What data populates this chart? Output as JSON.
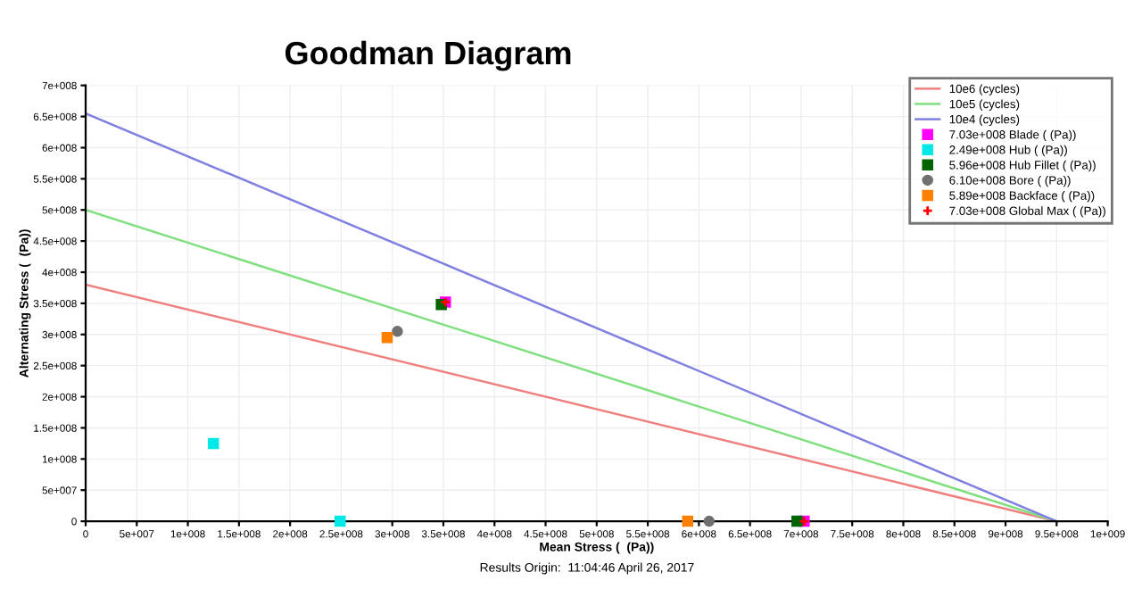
{
  "chart_data": {
    "type": "scatter",
    "title": "Goodman Diagram",
    "xlabel": "Mean Stress (  (Pa))",
    "ylabel": "Alternating Stress (  (Pa))",
    "series": [
      {
        "name": "10e6 (cycles)",
        "type": "line",
        "color": "#f08080",
        "marker": "none",
        "x": [
          0,
          950000000
        ],
        "values": [
          380000000,
          0
        ]
      },
      {
        "name": "10e5 (cycles)",
        "type": "line",
        "color": "#80e080",
        "marker": "none",
        "x": [
          0,
          950000000
        ],
        "values": [
          500000000,
          0
        ]
      },
      {
        "name": "10e4 (cycles)",
        "type": "line",
        "color": "#8080e0",
        "marker": "none",
        "x": [
          0,
          950000000
        ],
        "values": [
          655000000,
          0
        ]
      },
      {
        "name": "7.03e+008 Blade ( (Pa))",
        "color": "#ff00ff",
        "marker": "square",
        "x": [
          352000000,
          703000000
        ],
        "values": [
          352000000,
          0
        ]
      },
      {
        "name": "2.49e+008 Hub ( (Pa))",
        "color": "#00e8e8",
        "marker": "square",
        "x": [
          125000000,
          249000000
        ],
        "values": [
          125000000,
          0
        ]
      },
      {
        "name": "5.96e+008 Hub Fillet ( (Pa))",
        "color": "#006400",
        "marker": "square",
        "x": [
          348000000,
          696000000
        ],
        "values": [
          348000000,
          0
        ]
      },
      {
        "name": "6.10e+008 Bore ( (Pa))",
        "color": "#707070",
        "marker": "circle",
        "x": [
          305000000,
          610000000
        ],
        "values": [
          305000000,
          0
        ]
      },
      {
        "name": "5.89e+008 Backface ( (Pa))",
        "color": "#ff8000",
        "marker": "square",
        "x": [
          295000000,
          589000000
        ],
        "values": [
          295000000,
          0
        ]
      },
      {
        "name": "7.03e+008 Global Max ( (Pa))",
        "color": "#ff0000",
        "marker": "cross",
        "x": [
          352000000,
          703000000
        ],
        "values": [
          352000000,
          0
        ]
      }
    ],
    "xlim": [
      0,
      1000000000
    ],
    "ylim": [
      0,
      700000000
    ],
    "xticks": [
      0,
      {
        "value": 50000000,
        "label": "5e+007"
      },
      {
        "value": 100000000,
        "label": "1e+008"
      },
      {
        "value": 150000000,
        "label": "1.5e+008"
      },
      {
        "value": 200000000,
        "label": "2e+008"
      },
      {
        "value": 250000000,
        "label": "2.5e+008"
      },
      {
        "value": 300000000,
        "label": "3e+008"
      },
      {
        "value": 350000000,
        "label": "3.5e+008"
      },
      {
        "value": 400000000,
        "label": "4e+008"
      },
      {
        "value": 450000000,
        "label": "4.5e+008"
      },
      {
        "value": 500000000,
        "label": "5e+008"
      },
      {
        "value": 550000000,
        "label": "5.5e+008"
      },
      {
        "value": 600000000,
        "label": "6e+008"
      },
      {
        "value": 650000000,
        "label": "6.5e+008"
      },
      {
        "value": 700000000,
        "label": "7e+008"
      },
      {
        "value": 750000000,
        "label": "7.5e+008"
      },
      {
        "value": 800000000,
        "label": "8e+008"
      },
      {
        "value": 850000000,
        "label": "8.5e+008"
      },
      {
        "value": 900000000,
        "label": "9e+008"
      },
      {
        "value": 950000000,
        "label": "9.5e+008"
      },
      {
        "value": 1000000000,
        "label": "1e+009"
      }
    ],
    "yticks": [
      0,
      {
        "value": 50000000,
        "label": "5e+007"
      },
      {
        "value": 100000000,
        "label": "1e+008"
      },
      {
        "value": 150000000,
        "label": "1.5e+008"
      },
      {
        "value": 200000000,
        "label": "2e+008"
      },
      {
        "value": 250000000,
        "label": "2.5e+008"
      },
      {
        "value": 300000000,
        "label": "3e+008"
      },
      {
        "value": 350000000,
        "label": "3.5e+008"
      },
      {
        "value": 400000000,
        "label": "4e+008"
      },
      {
        "value": 450000000,
        "label": "4.5e+008"
      },
      {
        "value": 500000000,
        "label": "5e+008"
      },
      {
        "value": 550000000,
        "label": "5.5e+008"
      },
      {
        "value": 600000000,
        "label": "6e+008"
      },
      {
        "value": 650000000,
        "label": "6.5e+008"
      },
      {
        "value": 700000000,
        "label": "7e+008"
      }
    ],
    "grid": true,
    "legend": "top right",
    "annotations": [
      "Results Origin:  11:04:46 April 26, 2017"
    ]
  }
}
